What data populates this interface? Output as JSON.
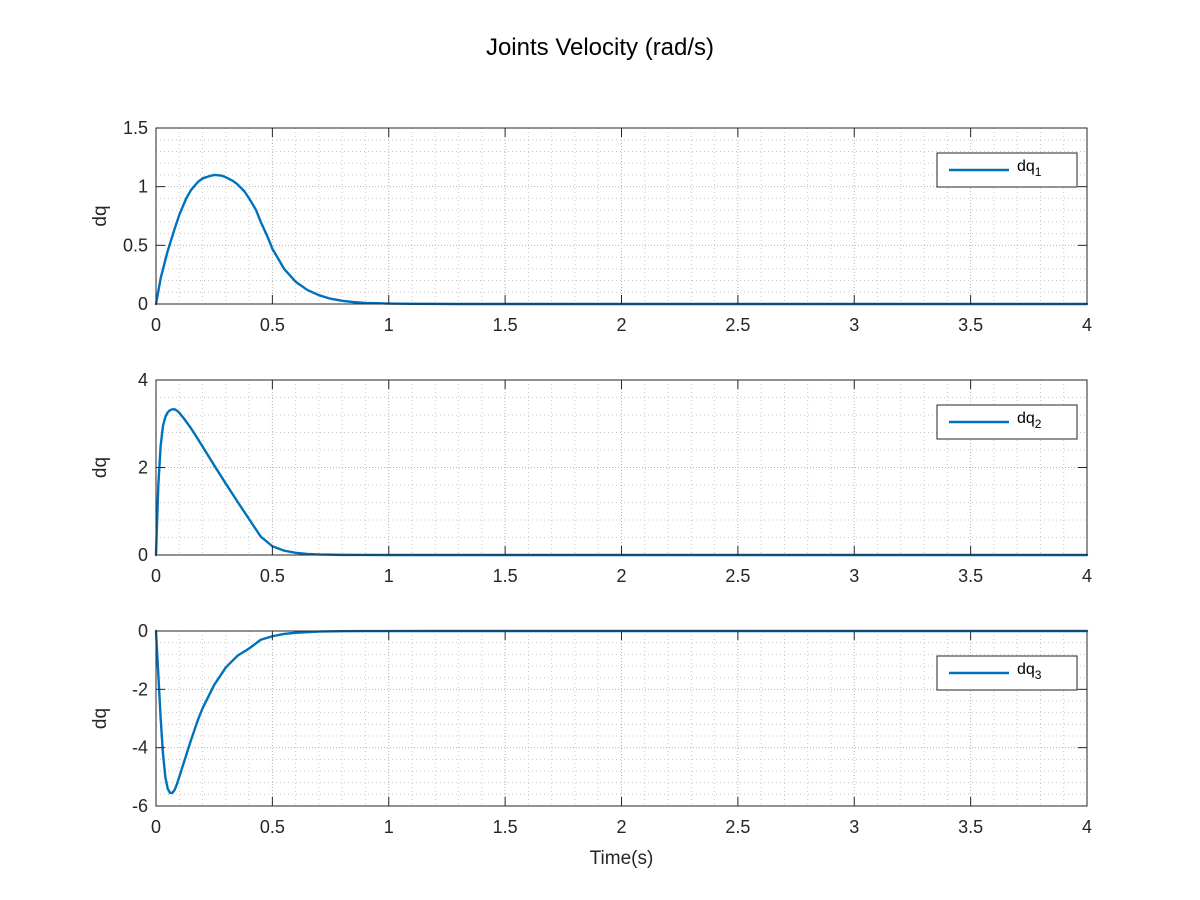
{
  "figure": {
    "title": "Joints Velocity (rad/s)",
    "line_color": "#0072BD",
    "axis_color": "#262626",
    "grid": "major and minor, dotted",
    "legend_location": "top-right"
  },
  "chart_data": [
    {
      "type": "line",
      "title": "",
      "xlabel": "",
      "ylabel": "dq",
      "xlim": [
        0,
        4
      ],
      "ylim": [
        0,
        1.5
      ],
      "xticks": [
        0,
        0.5,
        1,
        1.5,
        2,
        2.5,
        3,
        3.5,
        4
      ],
      "xtick_labels": [
        "0",
        "0.5",
        "1",
        "1.5",
        "2",
        "2.5",
        "3",
        "3.5",
        "4"
      ],
      "yticks": [
        0,
        0.5,
        1,
        1.5
      ],
      "ytick_labels": [
        "0",
        "0.5",
        "1",
        "1.5"
      ],
      "legend_position": "top-right",
      "series": [
        {
          "name": "dq",
          "subscript": "1",
          "color": "#0072BD",
          "x": [
            0,
            0.02,
            0.05,
            0.08,
            0.1,
            0.13,
            0.15,
            0.18,
            0.2,
            0.23,
            0.25,
            0.28,
            0.3,
            0.33,
            0.35,
            0.38,
            0.4,
            0.43,
            0.45,
            0.48,
            0.5,
            0.53,
            0.55,
            0.6,
            0.65,
            0.7,
            0.75,
            0.8,
            0.85,
            0.9,
            1.0,
            1.1,
            1.2,
            1.3,
            1.5,
            2.0,
            2.5,
            3.0,
            3.5,
            4.0
          ],
          "y": [
            0,
            0.22,
            0.45,
            0.64,
            0.76,
            0.9,
            0.97,
            1.04,
            1.07,
            1.09,
            1.1,
            1.095,
            1.08,
            1.05,
            1.02,
            0.96,
            0.9,
            0.8,
            0.7,
            0.57,
            0.47,
            0.37,
            0.3,
            0.19,
            0.12,
            0.075,
            0.045,
            0.027,
            0.016,
            0.009,
            0.004,
            0.002,
            0.001,
            0,
            0,
            0,
            0,
            0,
            0,
            0
          ]
        }
      ]
    },
    {
      "type": "line",
      "title": "",
      "xlabel": "",
      "ylabel": "dq",
      "xlim": [
        0,
        4
      ],
      "ylim": [
        0,
        4
      ],
      "xticks": [
        0,
        0.5,
        1,
        1.5,
        2,
        2.5,
        3,
        3.5,
        4
      ],
      "xtick_labels": [
        "0",
        "0.5",
        "1",
        "1.5",
        "2",
        "2.5",
        "3",
        "3.5",
        "4"
      ],
      "yticks": [
        0,
        2,
        4
      ],
      "ytick_labels": [
        "0",
        "2",
        "4"
      ],
      "legend_position": "top-right",
      "series": [
        {
          "name": "dq",
          "subscript": "2",
          "color": "#0072BD",
          "x": [
            0,
            0.01,
            0.02,
            0.03,
            0.04,
            0.05,
            0.06,
            0.07,
            0.08,
            0.09,
            0.1,
            0.12,
            0.15,
            0.18,
            0.2,
            0.25,
            0.3,
            0.35,
            0.4,
            0.45,
            0.5,
            0.55,
            0.6,
            0.65,
            0.7,
            0.8,
            0.9,
            1.0,
            1.2,
            1.5,
            2.0,
            2.5,
            3.0,
            3.5,
            4.0
          ],
          "y": [
            0,
            1.6,
            2.5,
            2.95,
            3.15,
            3.26,
            3.31,
            3.33,
            3.33,
            3.3,
            3.25,
            3.12,
            2.9,
            2.65,
            2.48,
            2.05,
            1.63,
            1.22,
            0.82,
            0.42,
            0.2,
            0.1,
            0.05,
            0.025,
            0.012,
            0.003,
            0.001,
            0,
            0,
            0,
            0,
            0,
            0,
            0,
            0
          ]
        }
      ]
    },
    {
      "type": "line",
      "title": "",
      "xlabel": "Time(s)",
      "ylabel": "dq",
      "xlim": [
        0,
        4
      ],
      "ylim": [
        -6,
        0
      ],
      "xticks": [
        0,
        0.5,
        1,
        1.5,
        2,
        2.5,
        3,
        3.5,
        4
      ],
      "xtick_labels": [
        "0",
        "0.5",
        "1",
        "1.5",
        "2",
        "2.5",
        "3",
        "3.5",
        "4"
      ],
      "yticks": [
        -6,
        -4,
        -2,
        0
      ],
      "ytick_labels": [
        "-6",
        "-4",
        "-2",
        "0"
      ],
      "legend_position": "top-right",
      "series": [
        {
          "name": "dq",
          "subscript": "3",
          "color": "#0072BD",
          "x": [
            0,
            0.01,
            0.02,
            0.03,
            0.04,
            0.05,
            0.06,
            0.07,
            0.08,
            0.09,
            0.1,
            0.12,
            0.15,
            0.18,
            0.2,
            0.25,
            0.3,
            0.35,
            0.4,
            0.45,
            0.5,
            0.55,
            0.6,
            0.7,
            0.8,
            0.9,
            1.0,
            1.2,
            1.5,
            2.0,
            2.5,
            3.0,
            3.5,
            4.0
          ],
          "y": [
            0,
            -1.5,
            -3.0,
            -4.2,
            -5.0,
            -5.4,
            -5.55,
            -5.55,
            -5.45,
            -5.25,
            -5.0,
            -4.5,
            -3.75,
            -3.05,
            -2.65,
            -1.85,
            -1.25,
            -0.85,
            -0.6,
            -0.3,
            -0.18,
            -0.1,
            -0.06,
            -0.02,
            -0.008,
            -0.003,
            -0.001,
            0,
            0,
            0,
            0,
            0,
            0,
            0
          ]
        }
      ]
    }
  ]
}
